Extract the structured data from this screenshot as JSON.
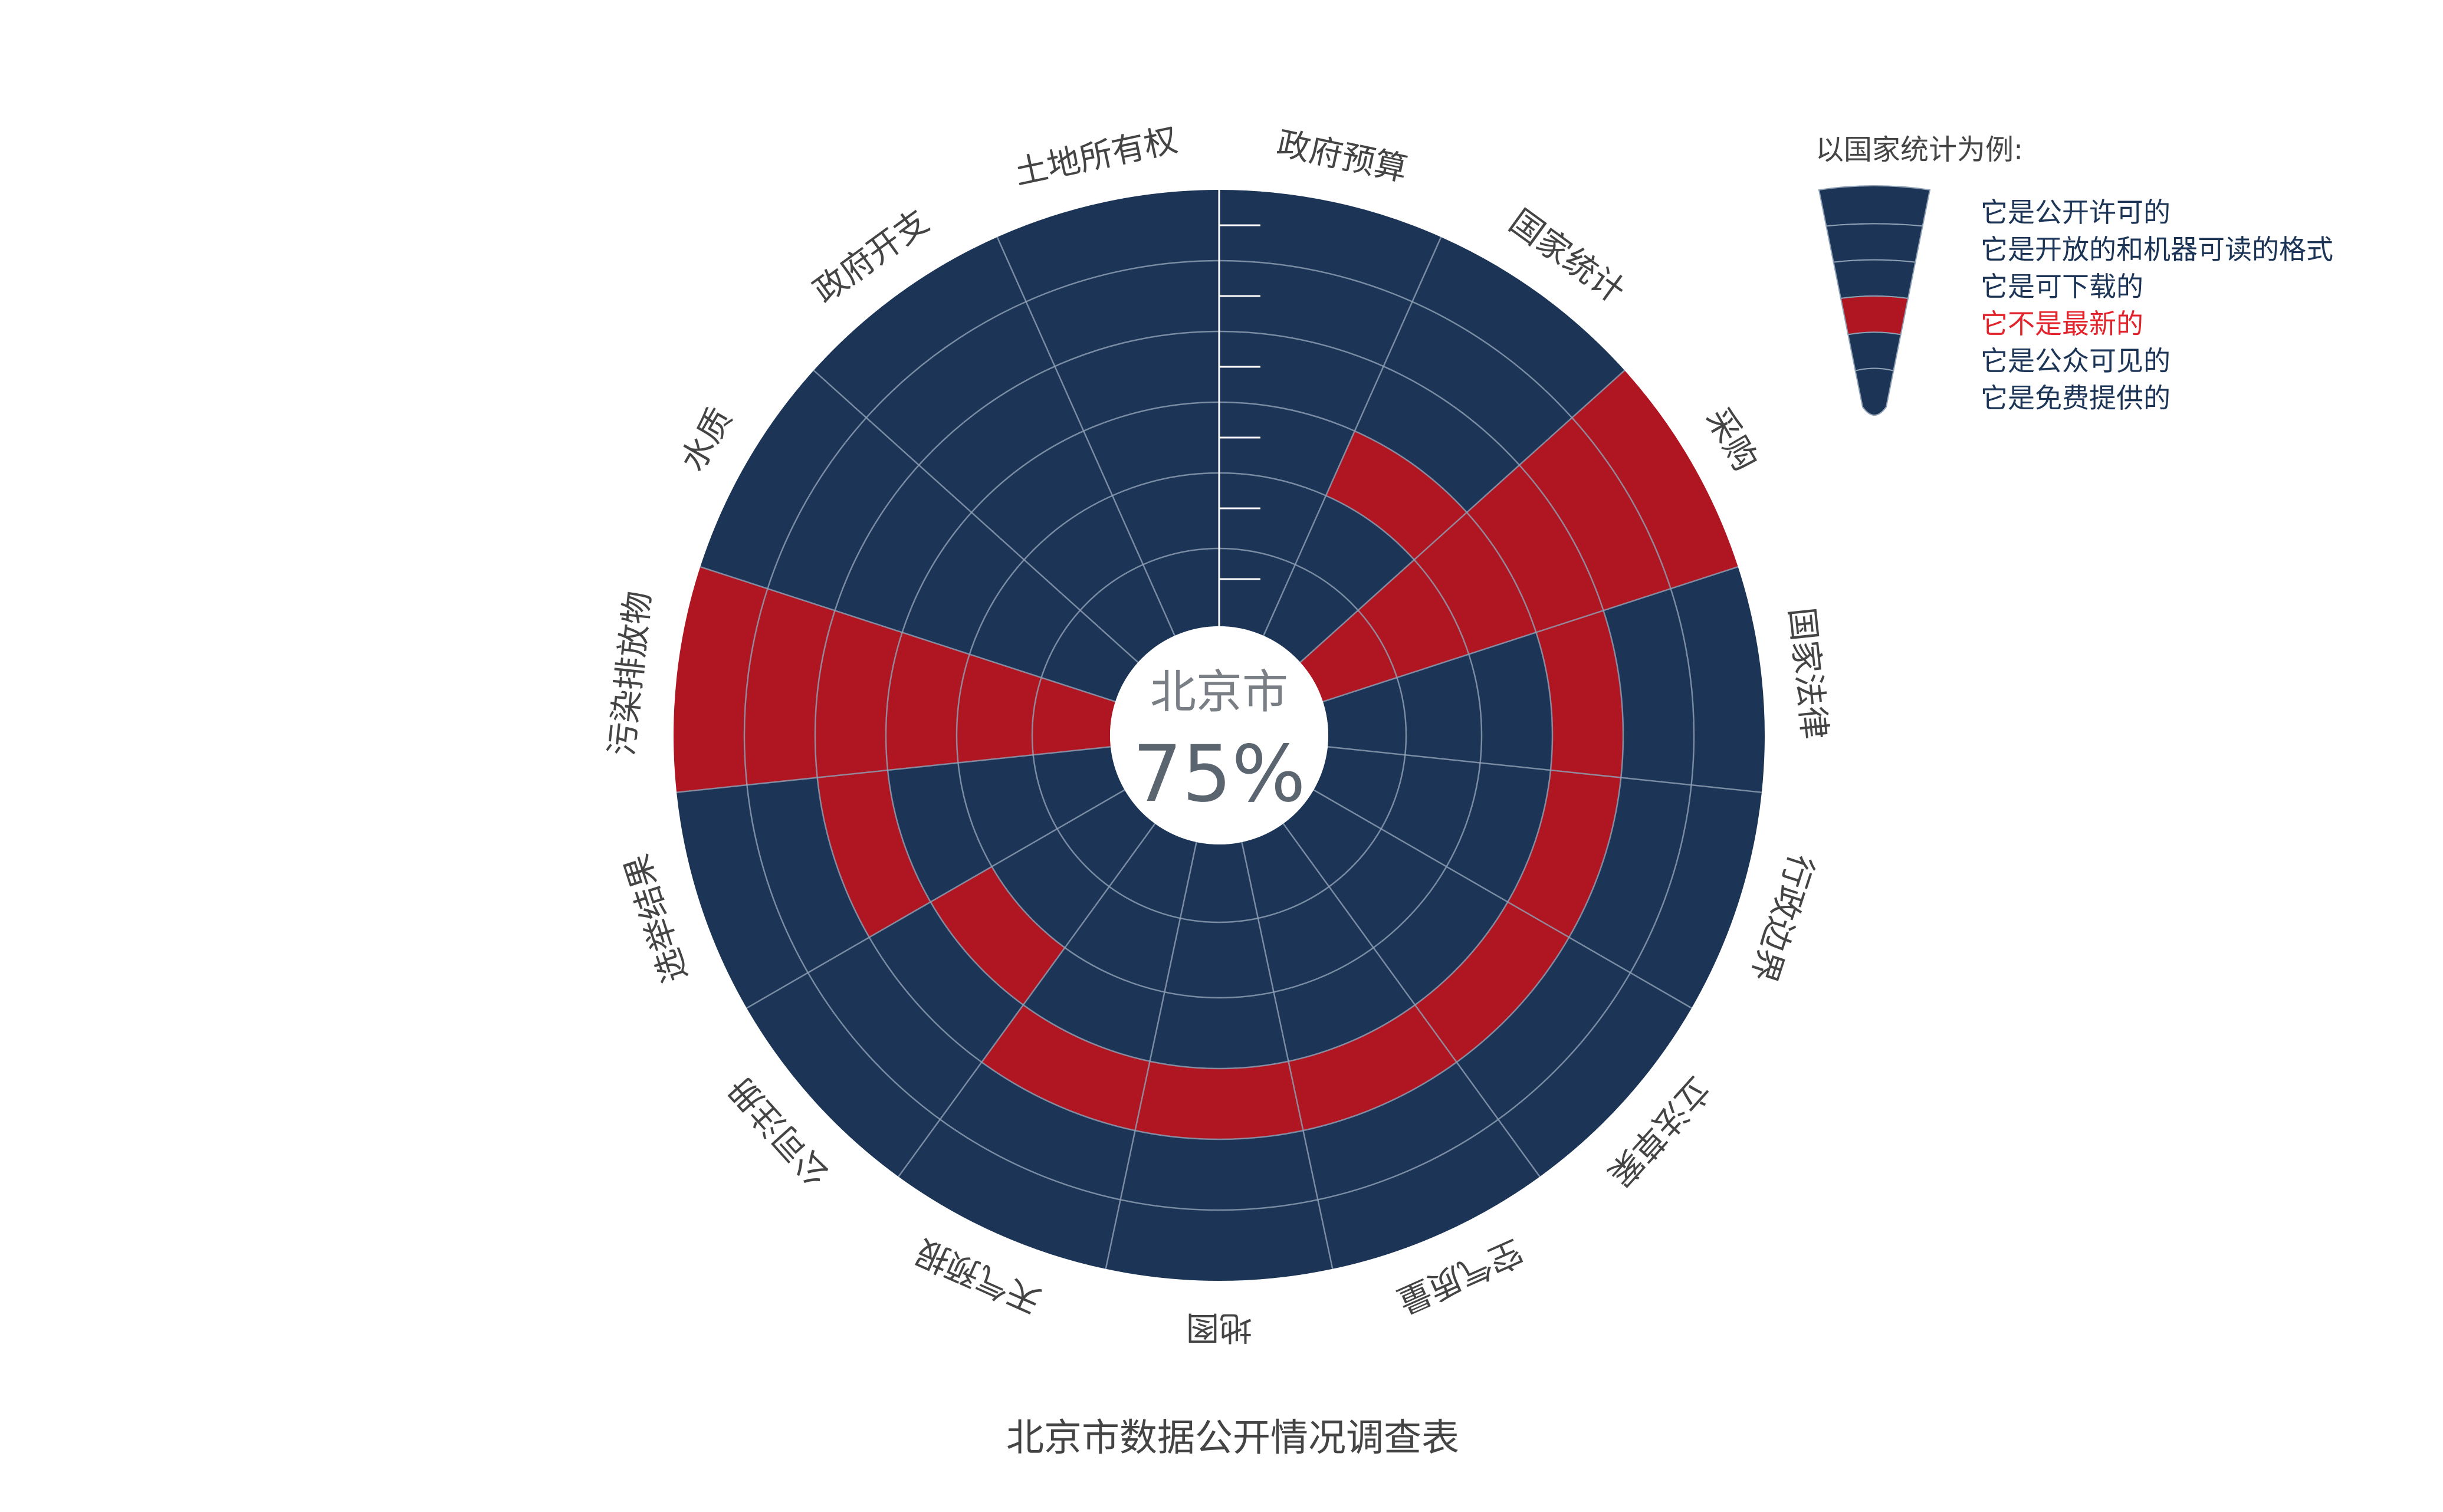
{
  "colors": {
    "yes": "#1c3557",
    "no": "#b01622",
    "grid": "#8fa0b5",
    "label": "#444444",
    "legend_yes": "#1c3557",
    "legend_no": "#e3232c"
  },
  "center": {
    "city": "北京市",
    "score": "75%"
  },
  "title": "北京市数据公开情况调查表",
  "legend": {
    "title": "以国家统计为例:",
    "items": [
      {
        "label": "它是公开许可的",
        "status": "yes"
      },
      {
        "label": "它是开放的和机器可读的格式",
        "status": "yes"
      },
      {
        "label": "它是可下载的",
        "status": "yes"
      },
      {
        "label": "它不是最新的",
        "status": "no"
      },
      {
        "label": "它是公众可见的",
        "status": "yes"
      },
      {
        "label": "它是免费提供的",
        "status": "yes"
      }
    ]
  },
  "chart_data": {
    "type": "radial-segment",
    "title": "北京市数据公开情况调查表",
    "rings_inner_to_outer": [
      "它是免费提供的",
      "它是公众可见的",
      "它不是最新的",
      "它是可下载的",
      "它是开放的和机器可读的格式",
      "它是公开许可的"
    ],
    "categories": [
      "政府预算",
      "国家统计",
      "采购",
      "国家法律",
      "行政边界",
      "立法草案",
      "空气质量",
      "地图",
      "天气预报",
      "公司注册",
      "选举结果",
      "污染排放物",
      "水质",
      "政府开支",
      "土地所有权"
    ],
    "values": [
      [
        1,
        1,
        1,
        1,
        1,
        1
      ],
      [
        1,
        1,
        0,
        1,
        1,
        1
      ],
      [
        0,
        0,
        0,
        0,
        0,
        0
      ],
      [
        1,
        1,
        1,
        0,
        1,
        1
      ],
      [
        1,
        1,
        1,
        0,
        1,
        1
      ],
      [
        1,
        1,
        1,
        0,
        1,
        1
      ],
      [
        1,
        1,
        1,
        0,
        1,
        1
      ],
      [
        1,
        1,
        1,
        0,
        1,
        1
      ],
      [
        1,
        1,
        1,
        0,
        1,
        1
      ],
      [
        1,
        1,
        0,
        1,
        1,
        1
      ],
      [
        1,
        1,
        1,
        0,
        1,
        1
      ],
      [
        0,
        0,
        0,
        0,
        0,
        0
      ],
      [
        1,
        1,
        1,
        1,
        1,
        1
      ],
      [
        1,
        1,
        1,
        1,
        1,
        1
      ],
      [
        1,
        1,
        1,
        1,
        1,
        1
      ]
    ]
  }
}
